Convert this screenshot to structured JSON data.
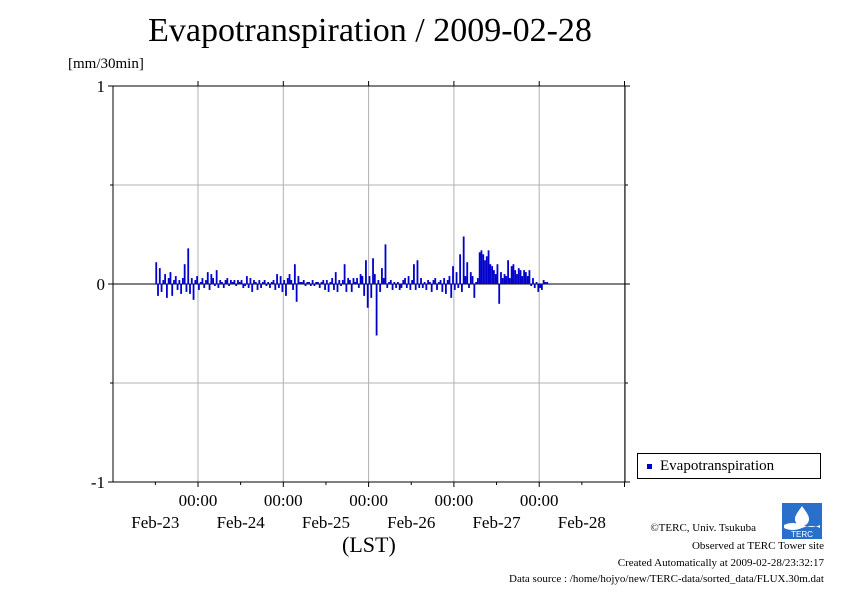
{
  "title": "Evapotranspiration / 2009-02-28",
  "unit_label": "[mm/30min]",
  "legend": {
    "label": "Evapotranspiration",
    "color": "#0000cc"
  },
  "x_unit_label": "(LST)",
  "credits": {
    "copyright": "©TERC, Univ. Tsukuba",
    "observed": "Observed at TERC Tower site",
    "created": "Created Automatically at 2009-02-28/23:32:17",
    "source": "Data source : /home/hojyo/new/TERC-data/sorted_data/FLUX.30m.dat"
  },
  "logo": {
    "icon": "terc-logo-icon",
    "text": "TERC"
  },
  "chart_data": {
    "type": "bar",
    "title": "Evapotranspiration / 2009-02-28",
    "ylabel": "[mm/30min]",
    "xlabel": "(LST)",
    "ylim": [
      -1,
      1
    ],
    "y_ticks": [
      "1",
      "0",
      "-1"
    ],
    "grid": true,
    "legend_position": "right",
    "bar_color": "#0000cc",
    "x_time_ticks": [
      {
        "time": "00:00",
        "date": "Feb-23"
      },
      {
        "time": "00:00",
        "date": "Feb-24"
      },
      {
        "time": "00:00",
        "date": "Feb-25"
      },
      {
        "time": "00:00",
        "date": "Feb-26"
      },
      {
        "time": "00:00",
        "date": "Feb-27"
      },
      {
        "time": "00:00",
        "date": "Feb-28"
      }
    ],
    "series": [
      {
        "name": "Evapotranspiration",
        "interval": "30min",
        "start": "2009-02-22 12:00",
        "values": [
          0.11,
          -0.06,
          0.08,
          -0.04,
          0.02,
          0.05,
          -0.07,
          0.03,
          0.06,
          -0.06,
          0.02,
          0.04,
          -0.03,
          0.02,
          -0.05,
          0.03,
          0.1,
          -0.04,
          0.18,
          -0.05,
          0.03,
          -0.08,
          0.02,
          0.04,
          -0.03,
          0.01,
          0.03,
          -0.02,
          0.02,
          0.06,
          -0.03,
          0.05,
          0.03,
          -0.01,
          0.07,
          -0.02,
          0.02,
          0.01,
          -0.02,
          0.02,
          0.03,
          -0.01,
          0.02,
          0.01,
          0.02,
          -0.01,
          0.02,
          0.01,
          0.02,
          -0.02,
          -0.01,
          0.04,
          -0.02,
          0.03,
          -0.04,
          0.02,
          0.01,
          -0.03,
          0.02,
          -0.02,
          0.01,
          0.02,
          -0.01,
          0.01,
          -0.02,
          0.01,
          0.02,
          -0.03,
          0.05,
          -0.02,
          0.04,
          -0.04,
          0.02,
          -0.06,
          0.03,
          0.05,
          0.02,
          -0.03,
          0.1,
          -0.09,
          0.04,
          0.01,
          0.01,
          0.02,
          -0.01,
          0.01,
          0.01,
          -0.01,
          0.02,
          -0.01,
          0.01,
          0.01,
          -0.02,
          0.01,
          0.02,
          -0.03,
          0.02,
          -0.04,
          0.01,
          0.03,
          -0.03,
          0.06,
          -0.04,
          0.02,
          -0.01,
          0.02,
          0.1,
          -0.04,
          0.03,
          0.02,
          -0.04,
          0.03,
          0.01,
          0.03,
          -0.02,
          0.05,
          0.04,
          -0.06,
          0.12,
          -0.12,
          0.04,
          -0.07,
          0.13,
          0.05,
          -0.26,
          0.02,
          -0.04,
          0.08,
          0.03,
          0.2,
          -0.02,
          0.01,
          0.02,
          -0.03,
          0.01,
          -0.02,
          0.01,
          -0.03,
          -0.02,
          0.02,
          0.03,
          -0.02,
          0.04,
          -0.03,
          0.02,
          0.1,
          -0.03,
          0.12,
          -0.02,
          0.03,
          -0.02,
          0.01,
          -0.03,
          0.02,
          0.01,
          -0.04,
          0.02,
          0.03,
          -0.03,
          0.01,
          0.02,
          -0.04,
          0.03,
          -0.05,
          0.02,
          0.04,
          -0.07,
          0.09,
          -0.03,
          0.06,
          -0.02,
          0.15,
          -0.04,
          0.24,
          0.04,
          0.11,
          -0.02,
          0.06,
          0.04,
          -0.07,
          0.01,
          0.03,
          0.16,
          0.17,
          0.15,
          0.12,
          0.14,
          0.17,
          0.1,
          0.09,
          0.07,
          0.05,
          0.1,
          -0.1,
          0.06,
          0.03,
          0.05,
          0.04,
          0.12,
          0.03,
          0.09,
          0.1,
          0.07,
          0.05,
          0.08,
          0.07,
          0.04,
          0.07,
          0.06,
          0.04,
          0.07,
          -0.01,
          0.03,
          -0.02,
          0.01,
          -0.04,
          -0.02,
          -0.03,
          0.02,
          0.01,
          0.01,
          0.0
        ]
      }
    ]
  }
}
